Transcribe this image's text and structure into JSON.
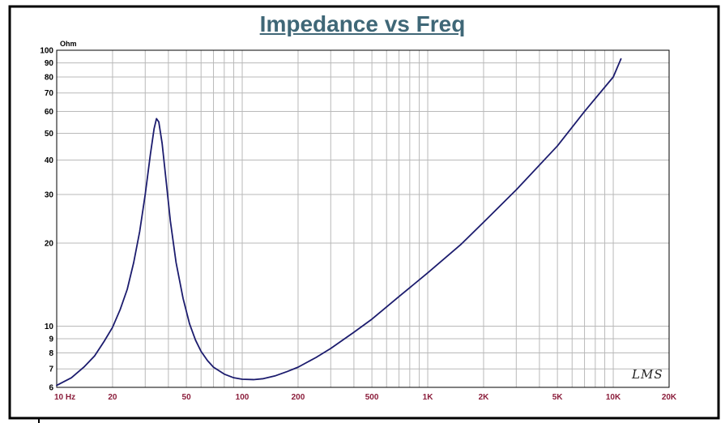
{
  "chart_data": {
    "type": "line",
    "title": "Impedance vs Freq",
    "y_unit_label": "Ohm",
    "x_scale": "log",
    "y_scale": "log",
    "xlim": [
      10,
      20000
    ],
    "ylim": [
      6,
      100
    ],
    "x_tick_labels": [
      {
        "value": 10,
        "label": "10  Hz"
      },
      {
        "value": 20,
        "label": "20"
      },
      {
        "value": 50,
        "label": "50"
      },
      {
        "value": 100,
        "label": "100"
      },
      {
        "value": 200,
        "label": "200"
      },
      {
        "value": 500,
        "label": "500"
      },
      {
        "value": 1000,
        "label": "1K"
      },
      {
        "value": 2000,
        "label": "2K"
      },
      {
        "value": 5000,
        "label": "5K"
      },
      {
        "value": 10000,
        "label": "10K"
      },
      {
        "value": 20000,
        "label": "20K"
      }
    ],
    "y_tick_labels": [
      {
        "value": 100,
        "label": "100"
      },
      {
        "value": 90,
        "label": "90"
      },
      {
        "value": 80,
        "label": "80"
      },
      {
        "value": 70,
        "label": "70"
      },
      {
        "value": 60,
        "label": "60"
      },
      {
        "value": 50,
        "label": "50"
      },
      {
        "value": 40,
        "label": "40"
      },
      {
        "value": 30,
        "label": "30"
      },
      {
        "value": 20,
        "label": "20"
      },
      {
        "value": 10,
        "label": "10"
      },
      {
        "value": 9,
        "label": "9"
      },
      {
        "value": 8,
        "label": "8"
      },
      {
        "value": 7,
        "label": "7"
      },
      {
        "value": 6,
        "label": "6"
      }
    ],
    "grid": true,
    "series": [
      {
        "color": "#1c1c6e",
        "points": [
          [
            10,
            6.1
          ],
          [
            12,
            6.5
          ],
          [
            14,
            7.1
          ],
          [
            16,
            7.8
          ],
          [
            18,
            8.8
          ],
          [
            20,
            9.9
          ],
          [
            22,
            11.5
          ],
          [
            24,
            13.6
          ],
          [
            26,
            17
          ],
          [
            28,
            22
          ],
          [
            30,
            30
          ],
          [
            32,
            42
          ],
          [
            33.5,
            52
          ],
          [
            34.5,
            56.5
          ],
          [
            35.5,
            55
          ],
          [
            37,
            46
          ],
          [
            39,
            33
          ],
          [
            41,
            24
          ],
          [
            44,
            17
          ],
          [
            48,
            12.6
          ],
          [
            52,
            10.2
          ],
          [
            56,
            8.9
          ],
          [
            60,
            8.1
          ],
          [
            65,
            7.5
          ],
          [
            70,
            7.1
          ],
          [
            80,
            6.7
          ],
          [
            90,
            6.5
          ],
          [
            100,
            6.42
          ],
          [
            115,
            6.4
          ],
          [
            130,
            6.45
          ],
          [
            150,
            6.6
          ],
          [
            175,
            6.85
          ],
          [
            200,
            7.1
          ],
          [
            250,
            7.7
          ],
          [
            300,
            8.3
          ],
          [
            400,
            9.5
          ],
          [
            500,
            10.6
          ],
          [
            700,
            12.8
          ],
          [
            1000,
            15.6
          ],
          [
            1500,
            19.7
          ],
          [
            2000,
            23.8
          ],
          [
            3000,
            31.2
          ],
          [
            5000,
            45
          ],
          [
            7000,
            60
          ],
          [
            10000,
            80
          ],
          [
            11000,
            93
          ]
        ]
      }
    ]
  },
  "branding": {
    "watermark_text": "LMS"
  }
}
